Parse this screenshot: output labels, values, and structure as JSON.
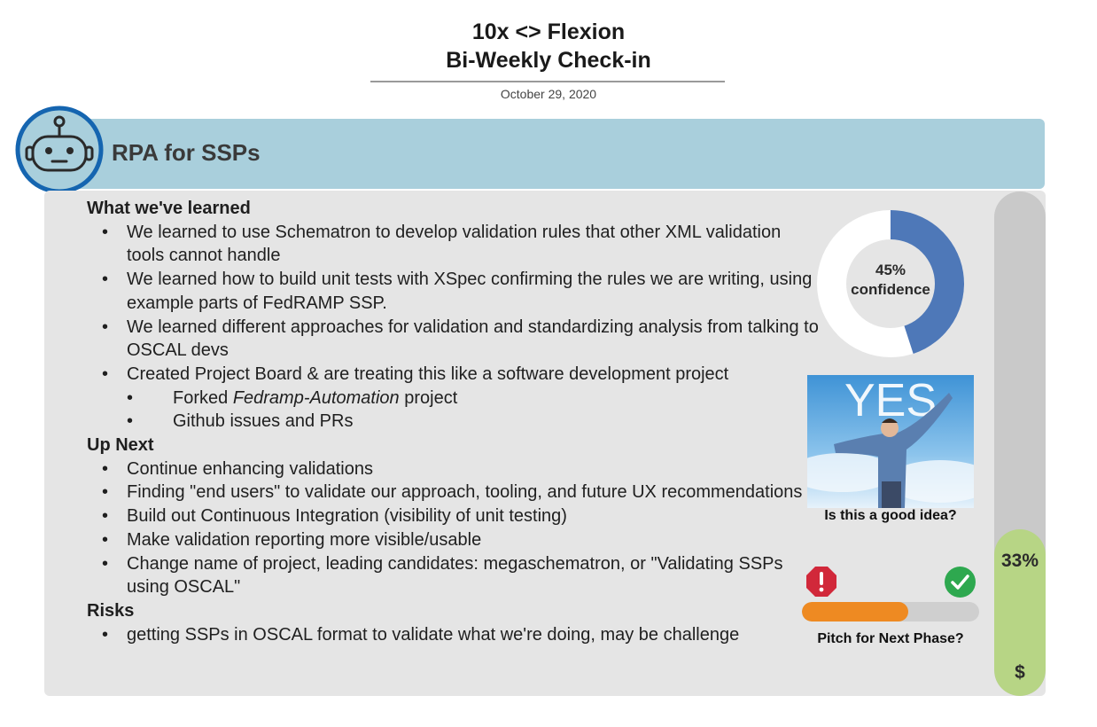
{
  "header": {
    "title_line1": "10x <> Flexion",
    "title_line2": "Bi-Weekly Check-in",
    "date": "October 29, 2020"
  },
  "banner": {
    "title": "RPA for SSPs",
    "icon": "robot-icon"
  },
  "learned": {
    "heading": "What we've learned",
    "items": [
      "We learned to use Schematron to develop validation rules that other XML validation tools cannot handle",
      "We learned how to build unit tests with XSpec confirming the rules we are writing, using example parts of FedRAMP SSP.",
      "We learned different approaches for validation and standardizing analysis from talking to OSCAL devs",
      "Created Project Board & are treating this like a software development project"
    ],
    "subitems": [
      {
        "prefix": "Forked ",
        "emphasis": "Fedramp-Automation",
        "suffix": " project"
      },
      {
        "text": "Github issues and PRs"
      }
    ]
  },
  "upnext": {
    "heading": "Up Next",
    "items": [
      "Continue enhancing validations",
      "Finding \"end users\" to validate our approach, tooling, and future UX recommendations",
      "Build out Continuous Integration (visibility of unit testing)",
      "Make validation reporting more visible/usable",
      "Change name of project, leading candidates: megaschematron, or \"Validating SSPs using OSCAL\""
    ]
  },
  "risks": {
    "heading": "Risks",
    "items": [
      "getting SSPs in OSCAL format to validate what we're doing, may be challenge"
    ]
  },
  "confidence": {
    "value_percent": 45,
    "label_value": "45%",
    "label_text": "confidence",
    "fill_color": "#4e78b8",
    "track_color": "#ffffff",
    "hole_color": "#e5e5e5"
  },
  "meme": {
    "text": "YES",
    "caption": "Is this a good idea?"
  },
  "pitch": {
    "caption": "Pitch for Next Phase?",
    "fraction": 0.6,
    "fill_color": "#ee8a22",
    "no_icon": "alert-icon",
    "yes_icon": "check-icon"
  },
  "budget": {
    "label": "33%",
    "fraction": 0.33,
    "symbol": "$",
    "fill_color": "#b7d585"
  }
}
